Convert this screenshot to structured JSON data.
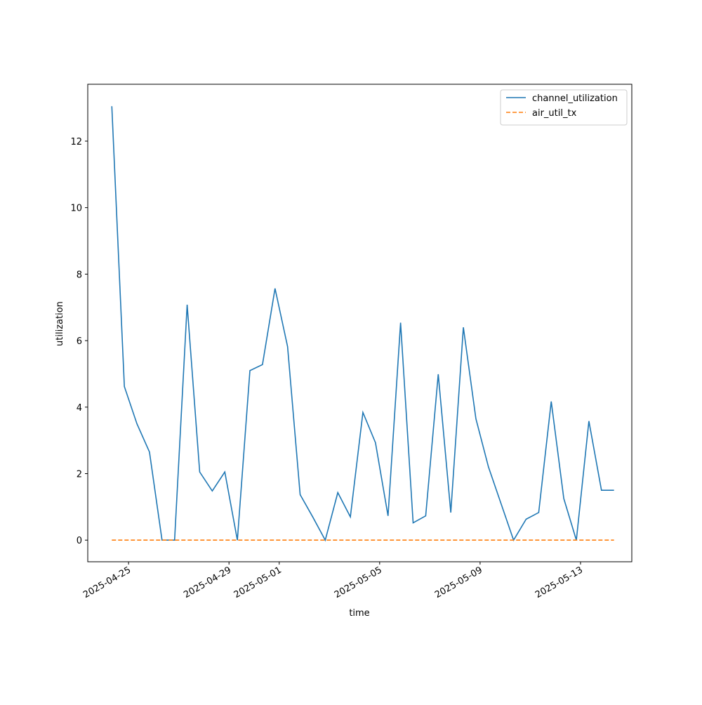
{
  "chart_data": {
    "type": "line",
    "xlabel": "time",
    "ylabel": "utilization",
    "x": [
      "2025-04-24T08:00",
      "2025-04-24T20:00",
      "2025-04-25T08:00",
      "2025-04-25T20:00",
      "2025-04-26T08:00",
      "2025-04-26T20:00",
      "2025-04-27T08:00",
      "2025-04-27T20:00",
      "2025-04-28T08:00",
      "2025-04-28T20:00",
      "2025-04-29T08:00",
      "2025-04-29T20:00",
      "2025-04-30T08:00",
      "2025-04-30T20:00",
      "2025-05-01T08:00",
      "2025-05-01T20:00",
      "2025-05-02T08:00",
      "2025-05-02T20:00",
      "2025-05-03T08:00",
      "2025-05-03T20:00",
      "2025-05-04T08:00",
      "2025-05-04T20:00",
      "2025-05-05T08:00",
      "2025-05-05T20:00",
      "2025-05-06T08:00",
      "2025-05-06T20:00",
      "2025-05-07T08:00",
      "2025-05-07T20:00",
      "2025-05-08T08:00",
      "2025-05-08T20:00",
      "2025-05-09T08:00",
      "2025-05-09T20:00",
      "2025-05-10T08:00",
      "2025-05-10T20:00",
      "2025-05-11T08:00",
      "2025-05-11T20:00",
      "2025-05-12T08:00",
      "2025-05-12T20:00",
      "2025-05-13T08:00",
      "2025-05-13T20:00",
      "2025-05-14T08:00"
    ],
    "series": [
      {
        "name": "channel_utilization",
        "color": "#1f77b4",
        "dash": false,
        "values": [
          13.05,
          4.62,
          3.5,
          2.65,
          0,
          0,
          7.08,
          2.05,
          1.48,
          2.05,
          0,
          5.1,
          5.28,
          7.57,
          5.82,
          1.37,
          0.7,
          0,
          1.43,
          0.7,
          3.84,
          2.93,
          0.73,
          6.54,
          0.52,
          0.73,
          4.99,
          0.83,
          6.4,
          3.65,
          2.2,
          1.1,
          0,
          0.63,
          0.83,
          4.17,
          1.25,
          0,
          3.58,
          1.5,
          1.5
        ]
      },
      {
        "name": "air_util_tx",
        "color": "#ff7f0e",
        "dash": true,
        "values": [
          0,
          0,
          0,
          0,
          0,
          0,
          0,
          0,
          0,
          0,
          0,
          0,
          0,
          0,
          0,
          0,
          0,
          0,
          0,
          0,
          0,
          0,
          0,
          0,
          0,
          0,
          0,
          0,
          0,
          0,
          0,
          0,
          0,
          0,
          0,
          0,
          0,
          0,
          0,
          0,
          0
        ]
      }
    ],
    "xlim": [
      "2025-04-23T09:00",
      "2025-05-15T01:00"
    ],
    "xticks": [
      "2025-04-25",
      "2025-04-29",
      "2025-05-01",
      "2025-05-05",
      "2025-05-09",
      "2025-05-13"
    ],
    "ylim": [
      -0.65,
      13.71
    ],
    "yticks": [
      0,
      2,
      4,
      6,
      8,
      10,
      12
    ],
    "legend": "upper right"
  }
}
